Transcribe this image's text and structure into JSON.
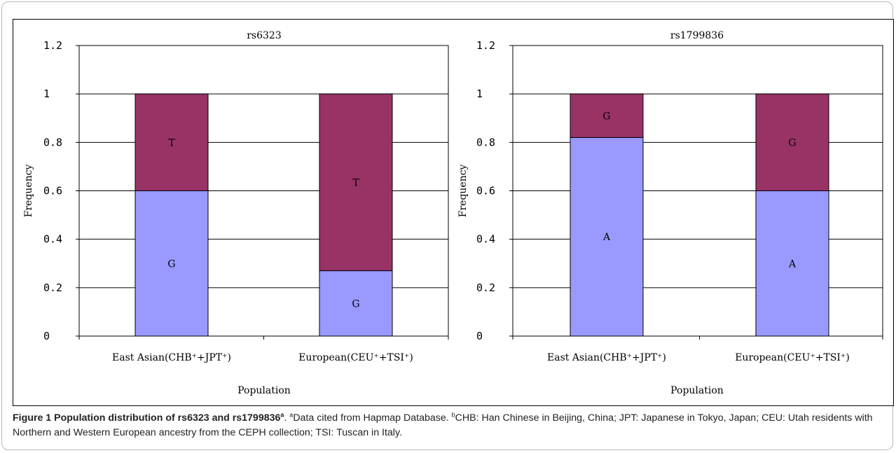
{
  "chart_data": [
    {
      "type": "bar",
      "stacked": true,
      "title": "rs6323",
      "xlabel": "Population",
      "ylabel": "Frequency",
      "ylim": [
        0,
        1.2
      ],
      "yticks": [
        "0",
        "0.2",
        "0.4",
        "0.6",
        "0.8",
        "1",
        "1.2"
      ],
      "categories": [
        "East Asian(CHB⁺+JPT⁺)",
        "European(CEU⁺+TSI⁺)"
      ],
      "series": [
        {
          "label": "G",
          "color": "#9999ff",
          "values": [
            0.6,
            0.27
          ]
        },
        {
          "label": "T",
          "color": "#993366",
          "values": [
            0.4,
            0.73
          ]
        }
      ],
      "grid": true
    },
    {
      "type": "bar",
      "stacked": true,
      "title": "rs1799836",
      "xlabel": "Population",
      "ylabel": "Frequency",
      "ylim": [
        0,
        1.2
      ],
      "yticks": [
        "0",
        "0.2",
        "0.4",
        "0.6",
        "0.8",
        "1",
        "1.2"
      ],
      "categories": [
        "East Asian(CHB⁺+JPT⁺)",
        "European(CEU⁺+TSI⁺)"
      ],
      "series": [
        {
          "label": "A",
          "color": "#9999ff",
          "values": [
            0.82,
            0.6
          ]
        },
        {
          "label": "G",
          "color": "#993366",
          "values": [
            0.18,
            0.4
          ]
        }
      ],
      "grid": true
    }
  ],
  "caption": {
    "figure_label": "Figure 1 Population distribution of rs6323 and rs1799836",
    "figure_label_sup": "a",
    "footnote_a_mark": "a",
    "footnote_a": "Data cited from Hapmap Database. ",
    "footnote_b_mark": "b",
    "footnote_b": "CHB: Han Chinese in Beijing, China; JPT: Japanese in Tokyo, Japan; CEU: Utah residents with Northern and Western European ancestry from the CEPH collection; TSI: Tuscan in Italy."
  }
}
